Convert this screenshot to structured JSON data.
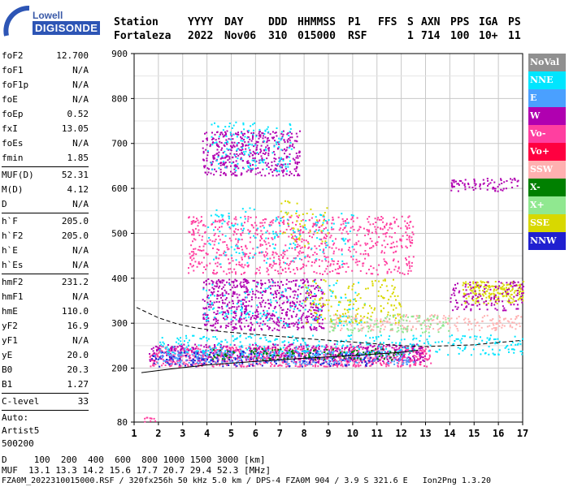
{
  "logo": {
    "line1": "Lowell",
    "line2": "DIGISONDE"
  },
  "header": {
    "labels": [
      "Station",
      "YYYY",
      "DAY",
      "DDD",
      "HHMMSS",
      "P1",
      "FFS",
      "S",
      "AXN",
      "PPS",
      "IGA",
      "PS"
    ],
    "values": [
      "Fortaleza",
      "2022",
      "Nov06",
      "310",
      "015000",
      "RSF",
      "1",
      "714",
      "100",
      "10+",
      "11"
    ]
  },
  "params": {
    "group1": [
      {
        "k": "foF2",
        "v": "12.700"
      },
      {
        "k": "foF1",
        "v": "N/A"
      },
      {
        "k": "foF1p",
        "v": "N/A"
      },
      {
        "k": "foE",
        "v": "N/A"
      },
      {
        "k": "foEp",
        "v": "0.52"
      },
      {
        "k": "fxI",
        "v": "13.05"
      },
      {
        "k": "foEs",
        "v": "N/A"
      },
      {
        "k": "fmin",
        "v": "1.85"
      }
    ],
    "group2": [
      {
        "k": "MUF(D)",
        "v": "52.31"
      },
      {
        "k": "M(D)",
        "v": "4.12"
      },
      {
        "k": "D",
        "v": "N/A"
      }
    ],
    "group3": [
      {
        "k": "h`F",
        "v": "205.0"
      },
      {
        "k": "h`F2",
        "v": "205.0"
      },
      {
        "k": "h`E",
        "v": "N/A"
      },
      {
        "k": "h`Es",
        "v": "N/A"
      }
    ],
    "group4": [
      {
        "k": "hmF2",
        "v": "231.2"
      },
      {
        "k": "hmF1",
        "v": "N/A"
      },
      {
        "k": "hmE",
        "v": "110.0"
      },
      {
        "k": "yF2",
        "v": "16.9"
      },
      {
        "k": "yF1",
        "v": "N/A"
      },
      {
        "k": "yE",
        "v": "20.0"
      },
      {
        "k": "B0",
        "v": "20.3"
      },
      {
        "k": "B1",
        "v": "1.27"
      }
    ],
    "clevel": {
      "k": "C-level",
      "v": "33"
    },
    "auto": [
      "Auto:",
      "Artist5",
      "500200"
    ]
  },
  "legend": [
    {
      "label": "NoVal",
      "color": "#909090"
    },
    {
      "label": "NNE",
      "color": "#00e5ff"
    },
    {
      "label": "E",
      "color": "#4aa0ff"
    },
    {
      "label": "W",
      "color": "#b000b0"
    },
    {
      "label": "Vo-",
      "color": "#ff3fa0"
    },
    {
      "label": "Vo+",
      "color": "#ff0040"
    },
    {
      "label": "SSW",
      "color": "#ffb0b0"
    },
    {
      "label": "X-",
      "color": "#008000"
    },
    {
      "label": "X+",
      "color": "#90e890"
    },
    {
      "label": "SSE",
      "color": "#d8d800"
    },
    {
      "label": "NNW",
      "color": "#2020d0"
    }
  ],
  "chart_data": {
    "type": "scatter",
    "xlim": [
      1,
      17
    ],
    "ylim": [
      80,
      900
    ],
    "x_ticks": [
      1,
      2,
      3,
      4,
      5,
      6,
      7,
      8,
      9,
      10,
      11,
      12,
      13,
      14,
      15,
      16,
      17
    ],
    "y_ticks": [
      80,
      200,
      300,
      400,
      500,
      600,
      700,
      800,
      900
    ],
    "grid": true,
    "legend_position": "right",
    "profile_line": {
      "x": [
        1.3,
        2.5,
        4,
        6,
        8,
        10,
        12,
        12.7
      ],
      "y": [
        190,
        198,
        207,
        215,
        222,
        228,
        235,
        240
      ]
    },
    "dashed_line": {
      "x": [
        1.1,
        2,
        2.8,
        3.5,
        4.5,
        6,
        8,
        10,
        12,
        13,
        15,
        17
      ],
      "y": [
        335,
        312,
        298,
        290,
        282,
        275,
        266,
        258,
        250,
        248,
        252,
        262
      ]
    },
    "regions": [
      {
        "series": "Vo-",
        "x": [
          1.6,
          13.2
        ],
        "y": [
          205,
          250
        ],
        "n": 900
      },
      {
        "series": "W",
        "x": [
          1.6,
          13.0
        ],
        "y": [
          215,
          255
        ],
        "n": 450
      },
      {
        "series": "E",
        "x": [
          1.8,
          12.5
        ],
        "y": [
          210,
          240
        ],
        "n": 350
      },
      {
        "series": "NNE",
        "x": [
          2,
          17
        ],
        "y": [
          230,
          275
        ],
        "n": 350
      },
      {
        "series": "NNW",
        "x": [
          1.7,
          11
        ],
        "y": [
          205,
          240
        ],
        "n": 150
      },
      {
        "series": "X-",
        "x": [
          4,
          12
        ],
        "y": [
          220,
          245
        ],
        "n": 120
      },
      {
        "series": "SSW",
        "x": [
          9,
          17
        ],
        "y": [
          285,
          320
        ],
        "n": 220
      },
      {
        "series": "X+",
        "x": [
          9,
          14
        ],
        "y": [
          280,
          320
        ],
        "n": 120
      },
      {
        "series": "W",
        "x": [
          3.8,
          8.8
        ],
        "y": [
          285,
          400
        ],
        "n": 650
      },
      {
        "series": "NNE",
        "x": [
          3.8,
          10.5
        ],
        "y": [
          295,
          395
        ],
        "n": 150
      },
      {
        "series": "SSE",
        "x": [
          8,
          12
        ],
        "y": [
          300,
          400
        ],
        "n": 160
      },
      {
        "series": "SSE",
        "x": [
          14.5,
          17
        ],
        "y": [
          345,
          395
        ],
        "n": 200
      },
      {
        "series": "W",
        "x": [
          14,
          17
        ],
        "y": [
          330,
          395
        ],
        "n": 140
      },
      {
        "series": "Vo-",
        "x": [
          3.2,
          12.5
        ],
        "y": [
          410,
          540
        ],
        "n": 800
      },
      {
        "series": "NNE",
        "x": [
          4,
          10
        ],
        "y": [
          430,
          560
        ],
        "n": 160
      },
      {
        "series": "SSE",
        "x": [
          7,
          9
        ],
        "y": [
          470,
          575
        ],
        "n": 50
      },
      {
        "series": "W",
        "x": [
          3.8,
          7.8
        ],
        "y": [
          630,
          730
        ],
        "n": 450
      },
      {
        "series": "NNE",
        "x": [
          4,
          7.5
        ],
        "y": [
          640,
          750
        ],
        "n": 140
      },
      {
        "series": "W",
        "x": [
          14,
          16.9
        ],
        "y": [
          595,
          625
        ],
        "n": 80
      },
      {
        "series": "Vo-",
        "x": [
          1.4,
          1.9
        ],
        "y": [
          82,
          92
        ],
        "n": 10
      }
    ]
  },
  "footer": {
    "line1": "D     100  200  400  600  800 1000 1500 3000 [km]",
    "line2": "MUF  13.1 13.3 14.2 15.6 17.7 20.7 29.4 52.3 [MHz]",
    "line3": "FZA0M_2022310015000.RSF / 320fx256h 50 kHz 5.0 km / DPS-4 FZA0M 904 / 3.9 S 321.6 E   Ion2Png 1.3.20"
  }
}
